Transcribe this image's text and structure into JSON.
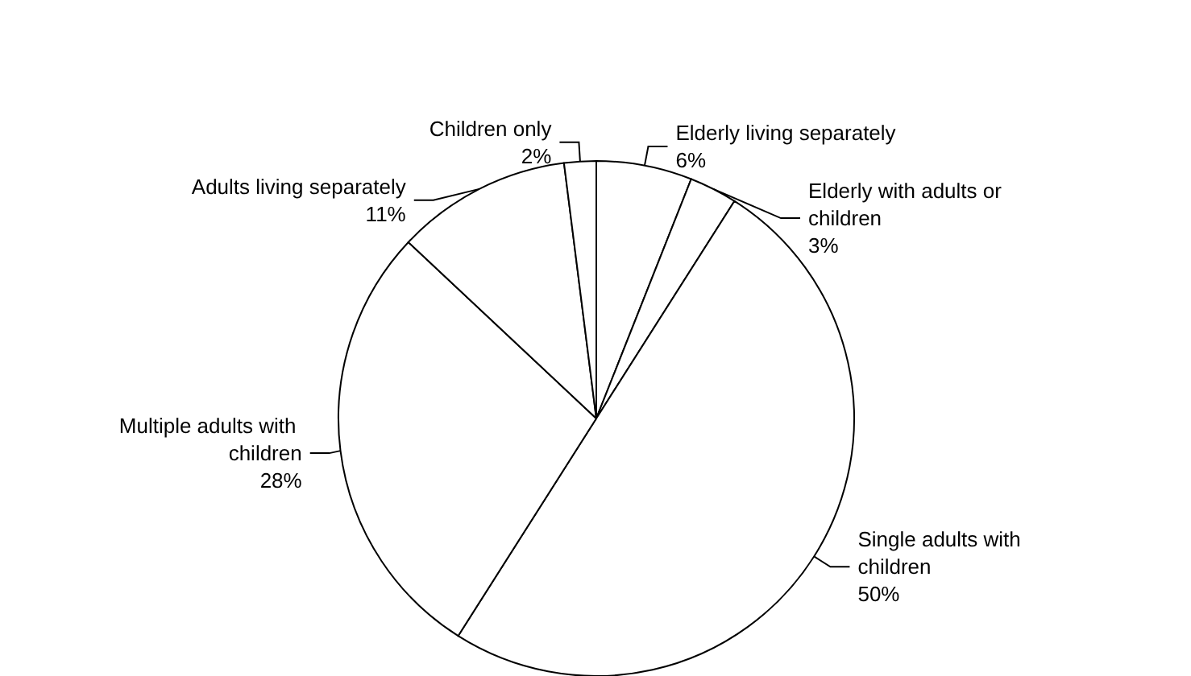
{
  "chart_data": {
    "type": "pie",
    "categories": [
      "Elderly living separately",
      "Elderly with adults or children",
      "Single adults with children",
      "Multiple adults with children",
      "Adults living separately",
      "Children only"
    ],
    "values": [
      6,
      3,
      50,
      28,
      11,
      2
    ],
    "value_labels": [
      "6%",
      "3%",
      "50%",
      "28%",
      "11%",
      "2%"
    ],
    "colors": [
      "#ffffff",
      "#ffffff",
      "#ffffff",
      "#ffffff",
      "#ffffff",
      "#ffffff"
    ]
  }
}
